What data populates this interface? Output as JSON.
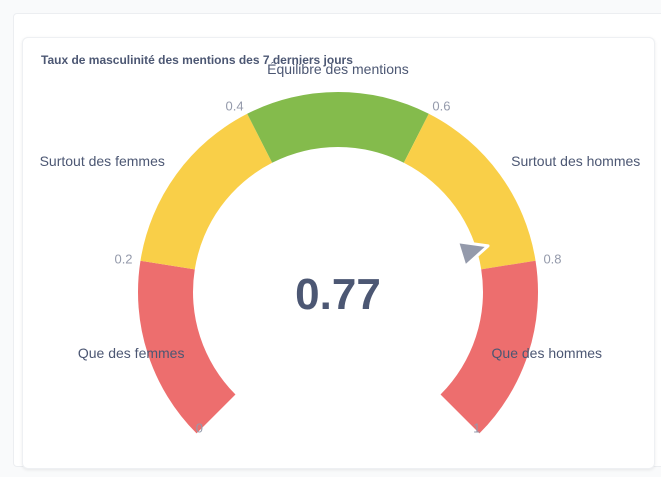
{
  "card": {
    "title": "Taux de masculinité des mentions des 7 derniers jours"
  },
  "chart_data": {
    "type": "gauge",
    "value": 0.77,
    "value_label": "0.77",
    "min": 0,
    "max": 1,
    "segments": [
      {
        "from": 0.0,
        "to": 0.2,
        "label": "Que des femmes",
        "color": "#ed6e6e"
      },
      {
        "from": 0.2,
        "to": 0.4,
        "label": "Surtout des femmes",
        "color": "#f9cf48"
      },
      {
        "from": 0.4,
        "to": 0.6,
        "label": "Équilibre des mentions",
        "color": "#84bb4c"
      },
      {
        "from": 0.6,
        "to": 0.8,
        "label": "Surtout des hommes",
        "color": "#f9cf48"
      },
      {
        "from": 0.8,
        "to": 1.0,
        "label": "Que des hommes",
        "color": "#ed6e6e"
      }
    ],
    "ticks": [
      "0",
      "0.2",
      "0.4",
      "0.6",
      "0.8",
      "1"
    ],
    "needle_color": "#949aab"
  }
}
